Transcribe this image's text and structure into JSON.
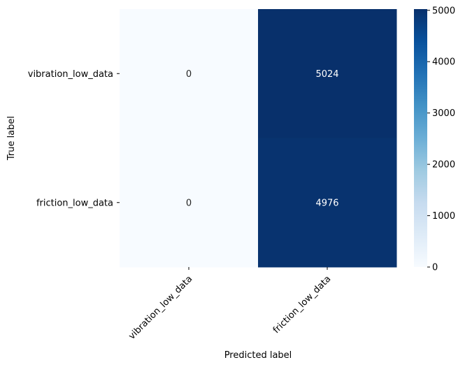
{
  "chart_data": {
    "type": "heatmap",
    "title": "",
    "xlabel": "Predicted label",
    "ylabel": "True label",
    "x_categories": [
      "vibration_low_data",
      "friction_low_data"
    ],
    "y_categories": [
      "vibration_low_data",
      "friction_low_data"
    ],
    "values": [
      [
        0,
        5024
      ],
      [
        0,
        4976
      ]
    ],
    "cell_labels": [
      [
        "0",
        "5024"
      ],
      [
        "0",
        "4976"
      ]
    ],
    "colormap": "Blues",
    "colormap_stops": [
      "#f7fbff",
      "#deebf7",
      "#c6dbef",
      "#9ecae1",
      "#6baed6",
      "#4292c6",
      "#2171b5",
      "#08519c",
      "#08306b"
    ],
    "colorbar": {
      "min": 0,
      "max": 5024,
      "ticks": [
        0,
        1000,
        2000,
        3000,
        4000,
        5000
      ],
      "tick_labels": [
        "0",
        "1000",
        "2000",
        "3000",
        "4000",
        "5000"
      ],
      "placement": "right"
    },
    "x_tick_rotation": 45,
    "grid": false,
    "legend": "none"
  }
}
